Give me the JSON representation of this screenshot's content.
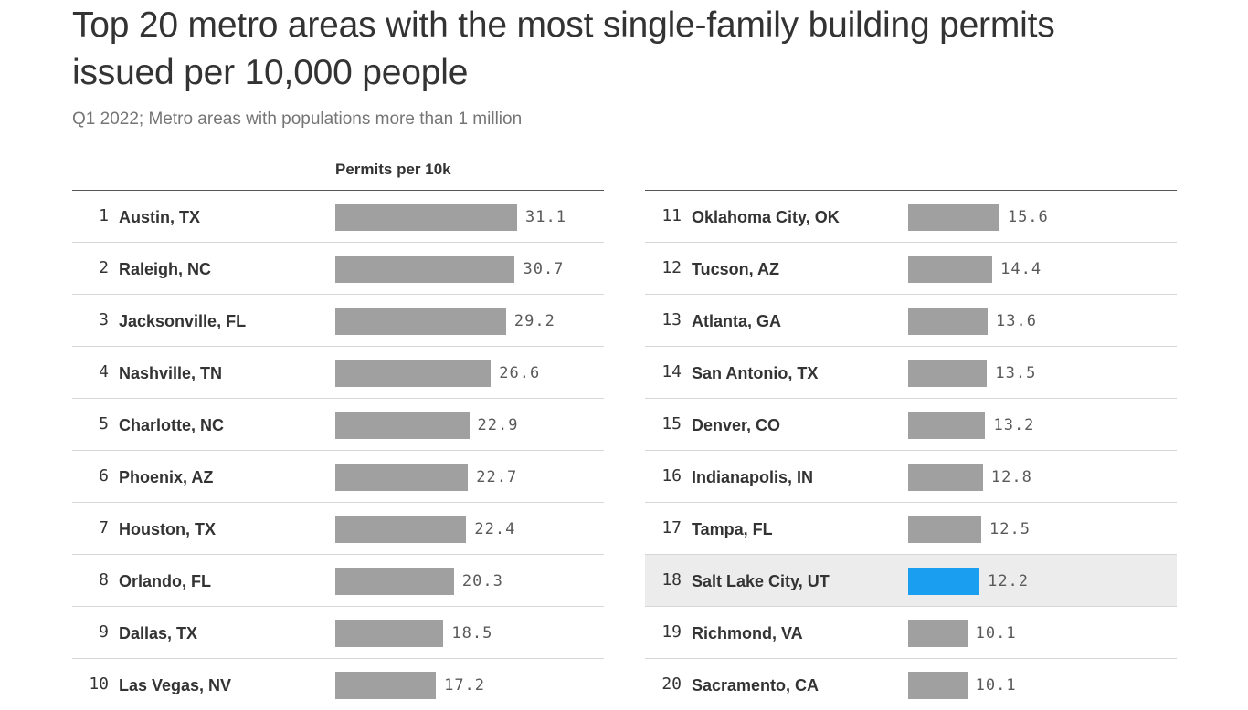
{
  "title": "Top 20 metro areas with the most single-family building permits issued per 10,000 people",
  "subtitle": "Q1 2022; Metro areas with populations more than 1 million",
  "column_header": "Permits per 10k",
  "colors": {
    "bar": "#a0a0a0",
    "highlight_bar": "#1a9ff0",
    "highlight_row": "#ececec"
  },
  "chart_data": {
    "type": "bar",
    "orientation": "horizontal",
    "title": "Top 20 metro areas with the most single-family building permits issued per 10,000 people",
    "subtitle": "Q1 2022; Metro areas with populations more than 1 million",
    "value_label": "Permits per 10k",
    "highlighted": "Salt Lake City, UT",
    "categories": [
      "Austin, TX",
      "Raleigh, NC",
      "Jacksonville, FL",
      "Nashville, TN",
      "Charlotte, NC",
      "Phoenix, AZ",
      "Houston, TX",
      "Orlando, FL",
      "Dallas, TX",
      "Las Vegas, NV",
      "Oklahoma City, OK",
      "Tucson, AZ",
      "Atlanta, GA",
      "San Antonio, TX",
      "Denver, CO",
      "Indianapolis, IN",
      "Tampa, FL",
      "Salt Lake City, UT",
      "Richmond, VA",
      "Sacramento, CA"
    ],
    "ranks": [
      "1",
      "2",
      "3",
      "4",
      "5",
      "6",
      "7",
      "8",
      "9",
      "10",
      "11",
      "12",
      "13",
      "14",
      "15",
      "16",
      "17",
      "18",
      "19",
      "20"
    ],
    "values": [
      31.1,
      30.7,
      29.2,
      26.6,
      22.9,
      22.7,
      22.4,
      20.3,
      18.5,
      17.2,
      15.6,
      14.4,
      13.6,
      13.5,
      13.2,
      12.8,
      12.5,
      12.2,
      10.1,
      10.1
    ],
    "value_labels": [
      "31.1",
      "30.7",
      "29.2",
      "26.6",
      "22.9",
      "22.7",
      "22.4",
      "20.3",
      "18.5",
      "17.2",
      "15.6",
      "14.4",
      "13.6",
      "13.5",
      "13.2",
      "12.8",
      "12.5",
      "12.2",
      "10.1",
      "10.1"
    ]
  }
}
